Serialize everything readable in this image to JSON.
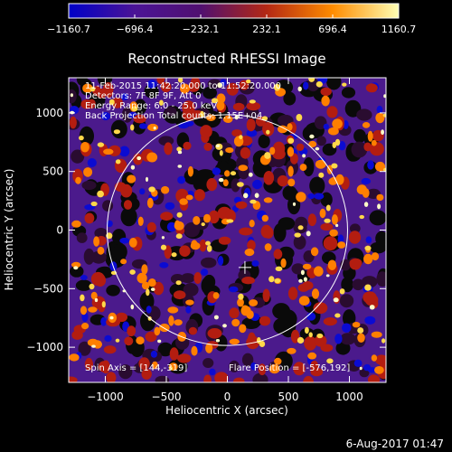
{
  "chart_data": {
    "type": "heatmap",
    "title": "Reconstructed RHESSI Image",
    "xlabel": "Heliocentric X (arcsec)",
    "ylabel": "Heliocentric Y (arcsec)",
    "xlim": [
      -1300,
      1300
    ],
    "ylim": [
      -1300,
      1300
    ],
    "x_ticks": [
      -1000,
      -500,
      0,
      500,
      1000
    ],
    "x_tick_labels": [
      "−1000",
      "−500",
      "0",
      "500",
      "1000"
    ],
    "y_ticks": [
      -1000,
      -500,
      0,
      500,
      1000
    ],
    "y_tick_labels": [
      "−1000",
      "−500",
      "0",
      "500",
      "1000"
    ],
    "colorbar": {
      "ticks": [
        -1160.7,
        -696.4,
        -232.1,
        232.1,
        696.4,
        1160.7
      ],
      "tick_labels": [
        "−1160.7",
        "−696.4",
        "−232.1",
        "232.1",
        "696.4",
        "1160.7"
      ],
      "colors": [
        "#0000c8",
        "#4b1496",
        "#501070",
        "#b42814",
        "#ff8c00",
        "#ffffb4"
      ]
    },
    "annotations": {
      "time": "11-Feb-2015 11:42:20.000 to 11:52:20.000",
      "detectors": "Detectors: 7F 8F 9F, Att 0",
      "energy": "Energy Range: 6.0 - 25.0 keV",
      "method": "Back Projection   Total counts: 1.15E+04",
      "spin_axis": "Spin Axis = [144,-319]",
      "flare_position": "Flare Position = [-576,192]"
    },
    "solar_limb_radius_arcsec": 985,
    "spin_axis_arcsec": [
      144,
      -319
    ],
    "grid": false
  },
  "footer": {
    "date": "6-Aug-2017 01:47"
  }
}
